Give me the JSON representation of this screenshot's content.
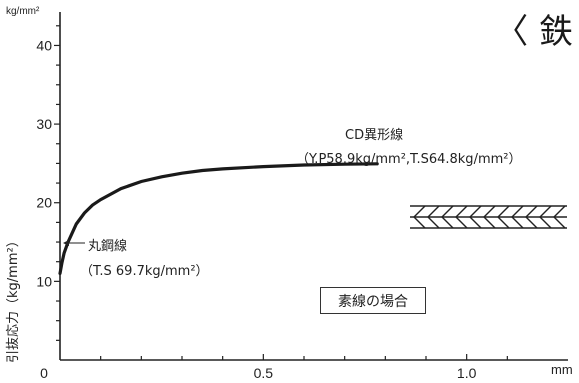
{
  "header": {
    "title": "〈 鉄"
  },
  "chart_data": {
    "type": "line",
    "ylabel": "引抜応力（kg/mm²）",
    "y_unit_top": "kg/mm²",
    "x_unit": "mm",
    "xlim": [
      0,
      1.2
    ],
    "ylim": [
      0,
      44
    ],
    "x_ticks": [
      {
        "value": 0,
        "label": "0"
      },
      {
        "value": 0.5,
        "label": "0.5"
      },
      {
        "value": 1.0,
        "label": "1.0"
      }
    ],
    "y_ticks": [
      {
        "value": 10,
        "label": "10"
      },
      {
        "value": 20,
        "label": "20"
      },
      {
        "value": 30,
        "label": "30"
      },
      {
        "value": 40,
        "label": "40"
      }
    ],
    "series": [
      {
        "color": "#1a1a1a",
        "points": [
          [
            0.0,
            11.0
          ],
          [
            0.005,
            12.4
          ],
          [
            0.01,
            13.6
          ],
          [
            0.02,
            15.0
          ],
          [
            0.04,
            17.3
          ],
          [
            0.06,
            18.7
          ],
          [
            0.08,
            19.7
          ],
          [
            0.1,
            20.4
          ],
          [
            0.15,
            21.8
          ],
          [
            0.2,
            22.7
          ],
          [
            0.25,
            23.3
          ],
          [
            0.3,
            23.75
          ],
          [
            0.35,
            24.1
          ],
          [
            0.4,
            24.3
          ],
          [
            0.5,
            24.6
          ],
          [
            0.6,
            24.8
          ],
          [
            0.7,
            24.9
          ],
          [
            0.78,
            24.95
          ]
        ]
      }
    ],
    "annotations": {
      "cd_name": "CD異形線",
      "cd_values": "（Y.P58.9kg/mm²,T.S64.8kg/mm²）",
      "round_name": "丸鋼線",
      "round_values": "（T.S 69.7kg/mm²）",
      "case_label": "素線の場合"
    }
  }
}
